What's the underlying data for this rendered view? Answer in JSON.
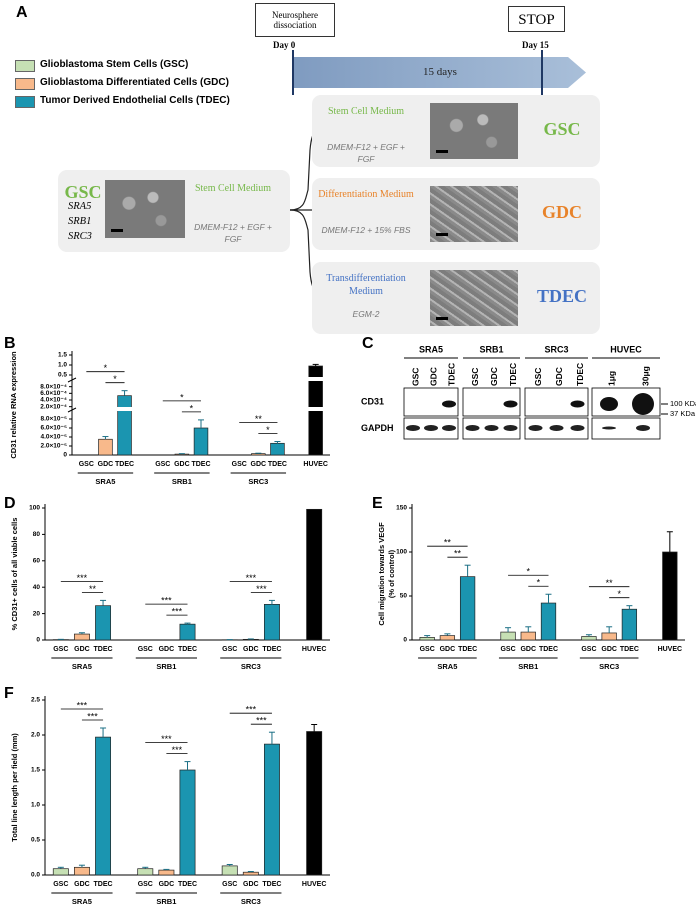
{
  "diagram": {
    "panel_label": "A",
    "start_box": "Neurosphere dissociation",
    "stop_box": "STOP",
    "day_start": "Day 0",
    "day_end": "Day 15",
    "duration": "15 days",
    "legend": [
      {
        "label": "Glioblastoma Stem Cells (GSC)",
        "color": "#c6e0b4"
      },
      {
        "label": "Glioblastoma Differentiated Cells (GDC)",
        "color": "#f8b98b"
      },
      {
        "label": "Tumor Derived Endothelial Cells (TDEC)",
        "color": "#1b95b0"
      }
    ],
    "source": {
      "code": "GSC",
      "code_color": "#77b84a",
      "lines": [
        "SRA5",
        "SRB1",
        "SRC3"
      ],
      "medium": "Stem Cell Medium",
      "recipe": "DMEM-F12 + EGF + FGF"
    },
    "conditions": [
      {
        "medium": "Stem Cell Medium",
        "recipe": "DMEM-F12 + EGF + FGF",
        "code": "GSC",
        "code_color": "#77b84a"
      },
      {
        "medium": "Differentiation Medium",
        "recipe": "DMEM-F12 + 15% FBS",
        "code": "GDC",
        "code_color": "#e8832a"
      },
      {
        "medium": "Transdifferentiation Medium",
        "recipe": "EGM-2",
        "code": "TDEC",
        "code_color": "#4472c4"
      }
    ]
  },
  "blot": {
    "panel_label": "C",
    "groups": [
      "SRA5",
      "SRB1",
      "SRC3",
      "HUVEC"
    ],
    "lanes": [
      [
        "GSC",
        "GDC",
        "TDEC"
      ],
      [
        "GSC",
        "GDC",
        "TDEC"
      ],
      [
        "GSC",
        "GDC",
        "TDEC"
      ],
      [
        "1μg",
        "30μg"
      ]
    ],
    "rows": [
      "CD31",
      "GAPDH"
    ],
    "markers": [
      "100 KDa",
      "37 KDa"
    ]
  },
  "chart_data": [
    {
      "type": "bar",
      "panel_label": "B",
      "ylabel": [
        "CD31 relative RNA expression"
      ],
      "categories": [
        "GSC",
        "GDC",
        "TDEC",
        "GSC",
        "GDC",
        "TDEC",
        "GSC",
        "GDC",
        "TDEC",
        "HUVEC"
      ],
      "groups": [
        "SRA5",
        "SRB1",
        "SRC3"
      ],
      "colors": [
        "#c6e0b4",
        "#f8b98b",
        "#1b95b0",
        "#c6e0b4",
        "#f8b98b",
        "#1b95b0",
        "#c6e0b4",
        "#f8b98b",
        "#1b95b0",
        "#000000"
      ],
      "values": [
        0,
        3.5e-05,
        0.00053,
        0,
        2e-06,
        6e-05,
        0,
        3e-06,
        2.6e-05,
        0.95
      ],
      "errors": [
        0,
        6e-06,
        0.00015,
        0,
        1e-06,
        1.8e-05,
        0,
        1e-06,
        4e-06,
        0.08
      ],
      "axis_segments": [
        {
          "ylim": [
            0,
            0.0001
          ],
          "yticks": [
            0,
            {
              "value": 2e-05,
              "label": "2.0×10⁻⁵"
            },
            {
              "value": 4e-05,
              "label": "4.0×10⁻⁵"
            },
            {
              "value": 6e-05,
              "label": "6.0×10⁻⁵"
            },
            {
              "value": 8e-05,
              "label": "8.0×10⁻⁵"
            }
          ]
        },
        {
          "ylim": [
            0.0001,
            0.001
          ],
          "yticks": [
            {
              "value": 0.0002,
              "label": "2.0×10⁻⁴"
            },
            {
              "value": 0.0004,
              "label": "4.0×10⁻⁴"
            },
            {
              "value": 0.0006,
              "label": "6.0×10⁻⁴"
            },
            {
              "value": 0.0008,
              "label": "8.0×10⁻⁴"
            }
          ]
        },
        {
          "ylim": [
            0.25,
            1.5
          ],
          "yticks": [
            0.5,
            {
              "value": 1,
              "label": "1.0"
            },
            1.5
          ]
        }
      ],
      "brackets": [
        {
          "from": 0,
          "to": 2,
          "label": "*"
        },
        {
          "from": 1,
          "to": 2,
          "label": "*"
        },
        {
          "from": 3,
          "to": 5,
          "label": "*"
        },
        {
          "from": 4,
          "to": 5,
          "label": "*"
        },
        {
          "from": 6,
          "to": 8,
          "label": "**"
        },
        {
          "from": 7,
          "to": 8,
          "label": "*"
        }
      ]
    },
    {
      "type": "bar",
      "panel_label": "D",
      "ylabel": [
        "% CD31+ cells of all viable cells"
      ],
      "categories": [
        "GSC",
        "GDC",
        "TDEC",
        "GSC",
        "GDC",
        "TDEC",
        "GSC",
        "GDC",
        "TDEC",
        "HUVEC"
      ],
      "groups": [
        "SRA5",
        "SRB1",
        "SRC3"
      ],
      "colors": [
        "#c6e0b4",
        "#f8b98b",
        "#1b95b0",
        "#c6e0b4",
        "#f8b98b",
        "#1b95b0",
        "#c6e0b4",
        "#f8b98b",
        "#1b95b0",
        "#000000"
      ],
      "values": [
        0.3,
        4.5,
        26,
        0,
        0,
        12,
        0.2,
        0.5,
        27,
        99
      ],
      "errors": [
        0.2,
        1,
        4,
        0,
        0,
        0.8,
        0.1,
        0.3,
        3,
        0
      ],
      "ylim": [
        0,
        100
      ],
      "yticks": [
        0,
        20,
        40,
        60,
        80,
        100
      ],
      "brackets": [
        {
          "from": 0,
          "to": 2,
          "label": "***"
        },
        {
          "from": 1,
          "to": 2,
          "label": "**"
        },
        {
          "from": 3,
          "to": 5,
          "label": "***"
        },
        {
          "from": 4,
          "to": 5,
          "label": "***"
        },
        {
          "from": 6,
          "to": 8,
          "label": "***"
        },
        {
          "from": 7,
          "to": 8,
          "label": "***"
        }
      ]
    },
    {
      "type": "bar",
      "panel_label": "E",
      "ylabel": [
        "Cell migration towards VEGF",
        "(% of control)"
      ],
      "categories": [
        "GSC",
        "GDC",
        "TDEC",
        "GSC",
        "GDC",
        "TDEC",
        "GSC",
        "GDC",
        "TDEC",
        "HUVEC"
      ],
      "groups": [
        "SRA5",
        "SRB1",
        "SRC3"
      ],
      "colors": [
        "#c6e0b4",
        "#f8b98b",
        "#1b95b0",
        "#c6e0b4",
        "#f8b98b",
        "#1b95b0",
        "#c6e0b4",
        "#f8b98b",
        "#1b95b0",
        "#000000"
      ],
      "values": [
        3,
        5,
        72,
        9,
        9,
        42,
        4,
        8,
        35,
        100
      ],
      "errors": [
        2,
        2,
        13,
        5,
        6,
        10,
        2,
        7,
        4,
        23
      ],
      "ylim": [
        0,
        150
      ],
      "yticks": [
        0,
        50,
        100,
        150
      ],
      "brackets": [
        {
          "from": 0,
          "to": 2,
          "label": "**"
        },
        {
          "from": 1,
          "to": 2,
          "label": "**"
        },
        {
          "from": 3,
          "to": 5,
          "label": "*"
        },
        {
          "from": 4,
          "to": 5,
          "label": "*"
        },
        {
          "from": 6,
          "to": 8,
          "label": "**"
        },
        {
          "from": 7,
          "to": 8,
          "label": "*"
        }
      ]
    },
    {
      "type": "bar",
      "panel_label": "F",
      "ylabel": [
        "Total line length per field (mm)"
      ],
      "categories": [
        "GSC",
        "GDC",
        "TDEC",
        "GSC",
        "GDC",
        "TDEC",
        "GSC",
        "GDC",
        "TDEC",
        "HUVEC"
      ],
      "groups": [
        "SRA5",
        "SRB1",
        "SRC3"
      ],
      "colors": [
        "#c6e0b4",
        "#f8b98b",
        "#1b95b0",
        "#c6e0b4",
        "#f8b98b",
        "#1b95b0",
        "#c6e0b4",
        "#f8b98b",
        "#1b95b0",
        "#000000"
      ],
      "values": [
        0.09,
        0.11,
        1.97,
        0.09,
        0.07,
        1.5,
        0.13,
        0.04,
        1.87,
        2.05
      ],
      "errors": [
        0.02,
        0.03,
        0.13,
        0.02,
        0.01,
        0.12,
        0.02,
        0.01,
        0.17,
        0.1
      ],
      "ylim": [
        0,
        2.5
      ],
      "yticks": [
        {
          "value": 0,
          "label": "0.0"
        },
        0.5,
        {
          "value": 1,
          "label": "1.0"
        },
        1.5,
        {
          "value": 2,
          "label": "2.0"
        },
        2.5
      ],
      "brackets": [
        {
          "from": 0,
          "to": 2,
          "label": "***"
        },
        {
          "from": 1,
          "to": 2,
          "label": "***"
        },
        {
          "from": 3,
          "to": 5,
          "label": "***"
        },
        {
          "from": 4,
          "to": 5,
          "label": "***"
        },
        {
          "from": 6,
          "to": 8,
          "label": "***"
        },
        {
          "from": 7,
          "to": 8,
          "label": "***"
        }
      ]
    }
  ]
}
